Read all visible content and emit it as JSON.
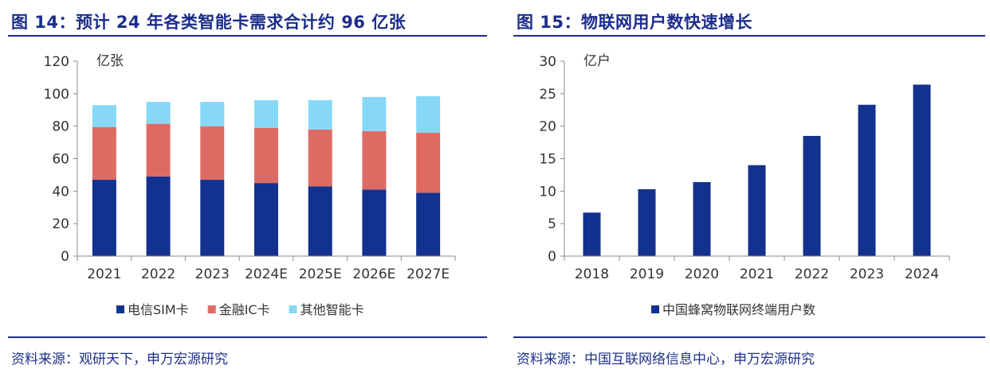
{
  "chart_data": [
    {
      "type": "bar",
      "stacked": true,
      "title": "图 14：预计 24 年各类智能卡需求合计约 96 亿张",
      "unit_label": "亿张",
      "categories": [
        "2021",
        "2022",
        "2023",
        "2024E",
        "2025E",
        "2026E",
        "2027E"
      ],
      "series": [
        {
          "name": "电信SIM卡",
          "color": "#13318f",
          "values": [
            47,
            49,
            47,
            45,
            43,
            41,
            39
          ]
        },
        {
          "name": "金融IC卡",
          "color": "#dd6b64",
          "values": [
            32.5,
            32.5,
            33,
            34,
            35,
            36,
            37
          ]
        },
        {
          "name": "其他智能卡",
          "color": "#87d8f7",
          "values": [
            13.5,
            13.5,
            15,
            17,
            18,
            21,
            22.5
          ]
        }
      ],
      "ylim": [
        0,
        120
      ],
      "yticks": [
        "0",
        "20",
        "40",
        "60",
        "80",
        "100",
        "120"
      ],
      "legend_position": "bottom",
      "source": "资料来源：观研天下，申万宏源研究"
    },
    {
      "type": "bar",
      "title": "图 15：物联网用户数快速增长",
      "unit_label": "亿户",
      "categories": [
        "2018",
        "2019",
        "2020",
        "2021",
        "2022",
        "2023",
        "2024"
      ],
      "series": [
        {
          "name": "中国蜂窝物联网终端用户数",
          "color": "#13318f",
          "values": [
            6.7,
            10.3,
            11.4,
            14.0,
            18.5,
            23.3,
            26.4
          ]
        }
      ],
      "ylim": [
        0,
        30
      ],
      "yticks": [
        "0",
        "5",
        "10",
        "15",
        "20",
        "25",
        "30"
      ],
      "legend_position": "bottom",
      "source": "资料来源：中国互联网络信息中心，申万宏源研究"
    }
  ]
}
